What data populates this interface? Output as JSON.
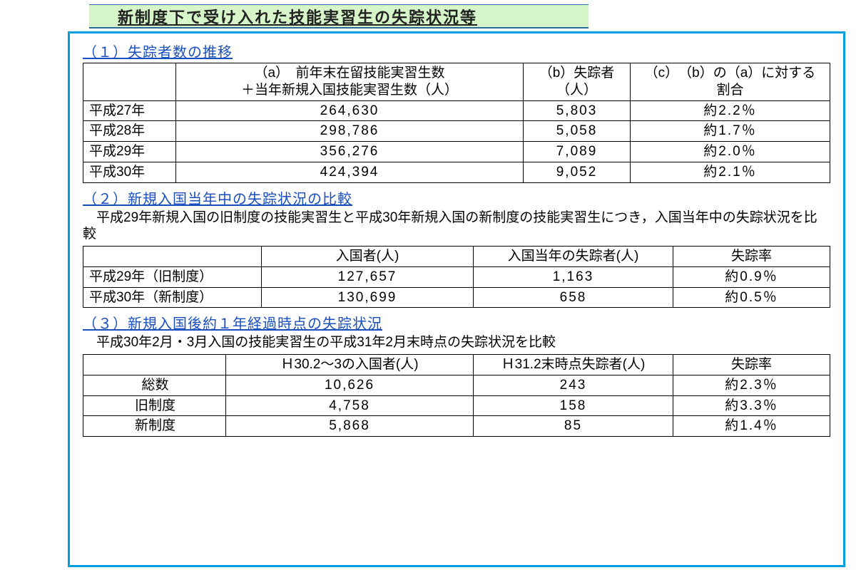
{
  "title": "新制度下で受け入れた技能実習生の失踪状況等",
  "section1": {
    "heading": "（１）失踪者数の推移",
    "headers": {
      "blank": "",
      "a": "（a）　前年末在留技能実習生数\n＋当年新規入国技能実習生数（人）",
      "b": "（b）失踪者\n（人）",
      "c": "（c）　（b）の（a）に対する\n割合"
    },
    "rows": [
      {
        "label": "平成27年",
        "a": "264,630",
        "b": "5,803",
        "c": "約2.2％"
      },
      {
        "label": "平成28年",
        "a": "298,786",
        "b": "5,058",
        "c": "約1.7％"
      },
      {
        "label": "平成29年",
        "a": "356,276",
        "b": "7,089",
        "c": "約2.0％"
      },
      {
        "label": "平成30年",
        "a": "424,394",
        "b": "9,052",
        "c": "約2.1％"
      }
    ]
  },
  "section2": {
    "heading": "（２）新規入国当年中の失踪状況の比較",
    "desc": "平成29年新規入国の旧制度の技能実習生と平成30年新規入国の新制度の技能実習生につき，入国当年中の失踪状況を比較",
    "headers": {
      "blank": "",
      "a": "入国者(人)",
      "b": "入国当年の失踪者(人)",
      "c": "失踪率"
    },
    "rows": [
      {
        "label": "平成29年（旧制度）",
        "a": "127,657",
        "b": "1,163",
        "c": "約0.9％"
      },
      {
        "label": "平成30年（新制度）",
        "a": "130,699",
        "b": "658",
        "c": "約0.5％"
      }
    ]
  },
  "section3": {
    "heading": "（３）新規入国後約１年経過時点の失踪状況",
    "desc": "平成30年2月・3月入国の技能実習生の平成31年2月末時点の失踪状況を比較",
    "headers": {
      "blank": "",
      "a": "Ｈ30.2～3の入国者(人)",
      "b": "Ｈ31.2末時点失踪者(人)",
      "c": "失踪率"
    },
    "rows": [
      {
        "label": "総数",
        "a": "10,626",
        "b": "243",
        "c": "約2.3％"
      },
      {
        "label": "旧制度",
        "a": "4,758",
        "b": "158",
        "c": "約3.3％"
      },
      {
        "label": "新制度",
        "a": "5,868",
        "b": "85",
        "c": "約1.4％"
      }
    ]
  }
}
